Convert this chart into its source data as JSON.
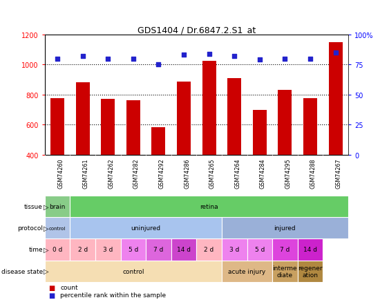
{
  "title": "GDS1404 / Dr.6847.2.S1_at",
  "samples": [
    "GSM74260",
    "GSM74261",
    "GSM74262",
    "GSM74282",
    "GSM74292",
    "GSM74286",
    "GSM74265",
    "GSM74264",
    "GSM74284",
    "GSM74295",
    "GSM74288",
    "GSM74267"
  ],
  "counts": [
    775,
    880,
    770,
    765,
    585,
    885,
    1025,
    910,
    700,
    830,
    775,
    1150
  ],
  "percentiles": [
    80,
    82,
    80,
    80,
    75,
    83,
    84,
    82,
    79,
    80,
    80,
    85
  ],
  "ylim_left": [
    400,
    1200
  ],
  "ylim_right": [
    0,
    100
  ],
  "yticks_left": [
    400,
    600,
    800,
    1000,
    1200
  ],
  "yticks_right": [
    0,
    25,
    50,
    75,
    100
  ],
  "bar_color": "#cc0000",
  "dot_color": "#2222cc",
  "tissue_row": {
    "label": "tissue",
    "segments": [
      {
        "text": "brain",
        "span": [
          0,
          1
        ],
        "color": "#88cc88"
      },
      {
        "text": "retina",
        "span": [
          1,
          12
        ],
        "color": "#66cc66"
      }
    ]
  },
  "protocol_row": {
    "label": "protocol",
    "segments": [
      {
        "text": "control",
        "span": [
          0,
          1
        ],
        "color": "#b0c4e8",
        "fontsize": 5
      },
      {
        "text": "uninjured",
        "span": [
          1,
          7
        ],
        "color": "#a8c4ee"
      },
      {
        "text": "injured",
        "span": [
          7,
          12
        ],
        "color": "#9ab0d8"
      }
    ]
  },
  "time_row": {
    "label": "time",
    "segments": [
      {
        "text": "0 d",
        "span": [
          0,
          1
        ],
        "color": "#ffb6c1"
      },
      {
        "text": "2 d",
        "span": [
          1,
          2
        ],
        "color": "#ffb6c1"
      },
      {
        "text": "3 d",
        "span": [
          2,
          3
        ],
        "color": "#ffb6c1"
      },
      {
        "text": "5 d",
        "span": [
          3,
          4
        ],
        "color": "#ee82ee"
      },
      {
        "text": "7 d",
        "span": [
          4,
          5
        ],
        "color": "#dd66dd"
      },
      {
        "text": "14 d",
        "span": [
          5,
          6
        ],
        "color": "#cc44cc"
      },
      {
        "text": "2 d",
        "span": [
          6,
          7
        ],
        "color": "#ffb6c1"
      },
      {
        "text": "3 d",
        "span": [
          7,
          8
        ],
        "color": "#ee82ee"
      },
      {
        "text": "5 d",
        "span": [
          8,
          9
        ],
        "color": "#ee82ee"
      },
      {
        "text": "7 d",
        "span": [
          9,
          10
        ],
        "color": "#dd44dd"
      },
      {
        "text": "14 d",
        "span": [
          10,
          11
        ],
        "color": "#cc22cc"
      }
    ]
  },
  "disease_row": {
    "label": "disease state",
    "segments": [
      {
        "text": "control",
        "span": [
          0,
          7
        ],
        "color": "#f5deb3"
      },
      {
        "text": "acute injury",
        "span": [
          7,
          9
        ],
        "color": "#deb887"
      },
      {
        "text": "interme\ndiate",
        "span": [
          9,
          10
        ],
        "color": "#c8a060"
      },
      {
        "text": "regener\nation",
        "span": [
          10,
          11
        ],
        "color": "#b08840"
      }
    ]
  },
  "legend": [
    {
      "color": "#cc0000",
      "label": "count"
    },
    {
      "color": "#2222cc",
      "label": "percentile rank within the sample"
    }
  ]
}
